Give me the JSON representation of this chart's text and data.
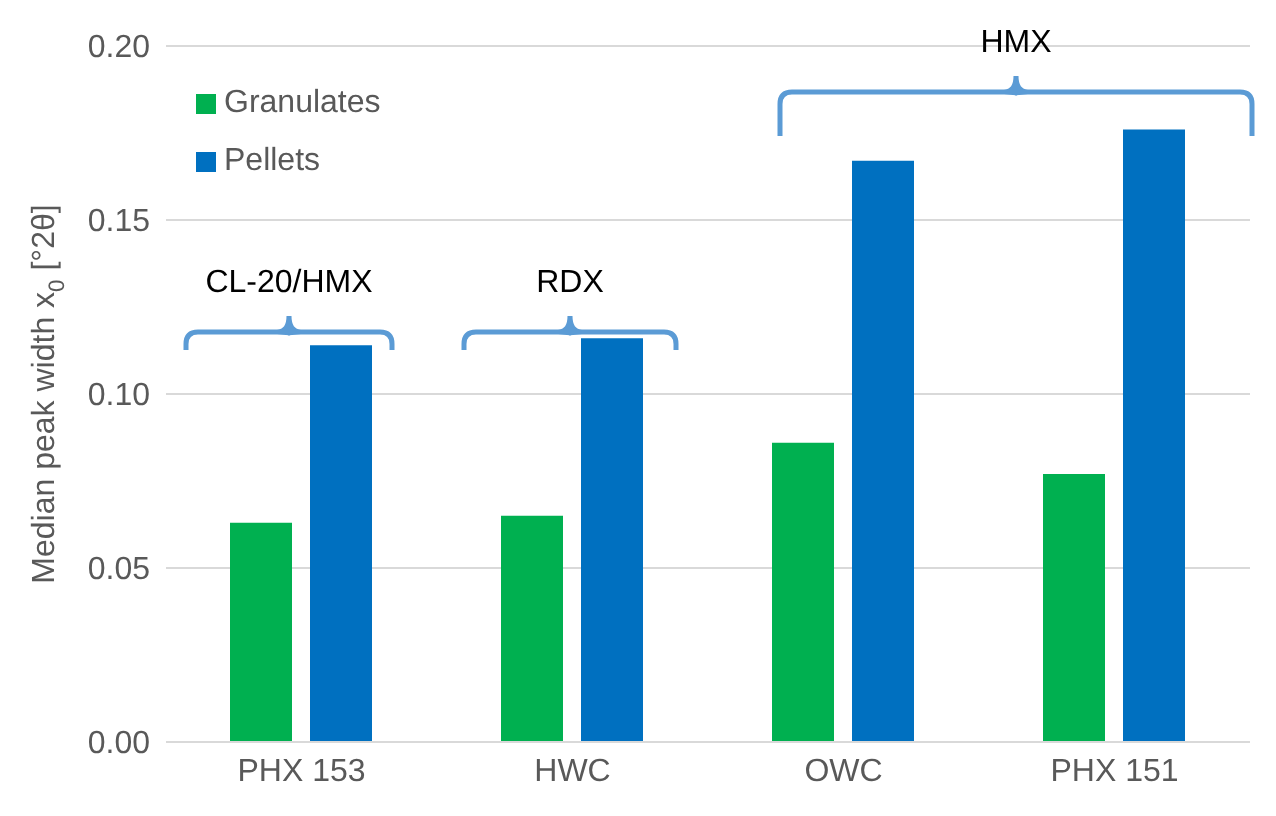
{
  "chart_data": {
    "type": "bar",
    "ylabel": "Median peak width x$_{0}$ [°2θ]",
    "categories": [
      "PHX 153",
      "HWC",
      "OWC",
      "PHX 151"
    ],
    "series": [
      {
        "name": "Granulates",
        "color": "#00b050",
        "values": [
          0.063,
          0.065,
          0.086,
          0.077
        ]
      },
      {
        "name": "Pellets",
        "color": "#0070c0",
        "values": [
          0.114,
          0.116,
          0.167,
          0.176
        ]
      }
    ],
    "ylim": [
      0,
      0.2
    ],
    "yticks": [
      {
        "value": 0,
        "label": "0.00"
      },
      {
        "value": 0.05,
        "label": "0.05"
      },
      {
        "value": 0.1,
        "label": "0.10"
      },
      {
        "value": 0.15,
        "label": "0.15"
      },
      {
        "value": 0.2,
        "label": "0.20"
      }
    ],
    "grid": "y",
    "legend": "top left",
    "annotations": [
      "CL-20/HMX",
      "RDX",
      "HMX"
    ]
  }
}
